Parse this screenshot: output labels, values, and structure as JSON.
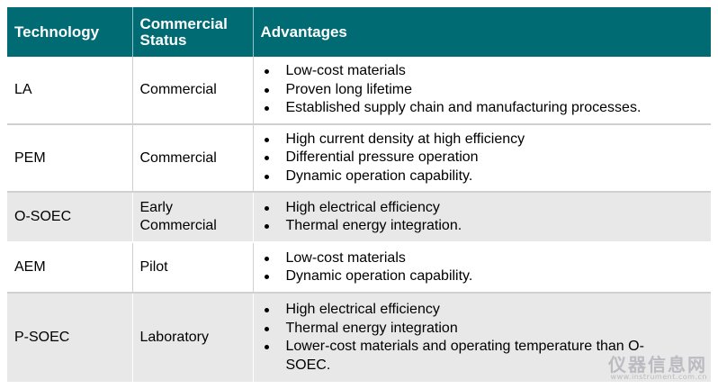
{
  "headers": {
    "technology": "Technology",
    "status": "Commercial Status",
    "advantages": "Advantages"
  },
  "rows": [
    {
      "technology": "LA",
      "status": "Commercial",
      "advantages": [
        "Low-cost materials",
        "Proven long lifetime",
        "Established supply chain and manufacturing processes."
      ]
    },
    {
      "technology": "PEM",
      "status": "Commercial",
      "advantages": [
        "High current density at high efficiency",
        "Differential pressure operation",
        "Dynamic operation capability."
      ]
    },
    {
      "technology": "O-SOEC",
      "status": "Early Commercial",
      "advantages": [
        "High electrical efficiency",
        "Thermal energy integration."
      ]
    },
    {
      "technology": "AEM",
      "status": "Pilot",
      "advantages": [
        "Low-cost materials",
        "Dynamic operation capability."
      ]
    },
    {
      "technology": "P-SOEC",
      "status": "Laboratory",
      "advantages": [
        "High electrical efficiency",
        "Thermal energy integration",
        "Lower-cost materials and operating temperature than O-SOEC."
      ]
    }
  ],
  "watermark": {
    "main": "仪器信息网",
    "sub": "www.instrument.com.cn"
  },
  "colors": {
    "header_bg": "#006b73",
    "alt_row_bg": "#e8e8e8"
  }
}
